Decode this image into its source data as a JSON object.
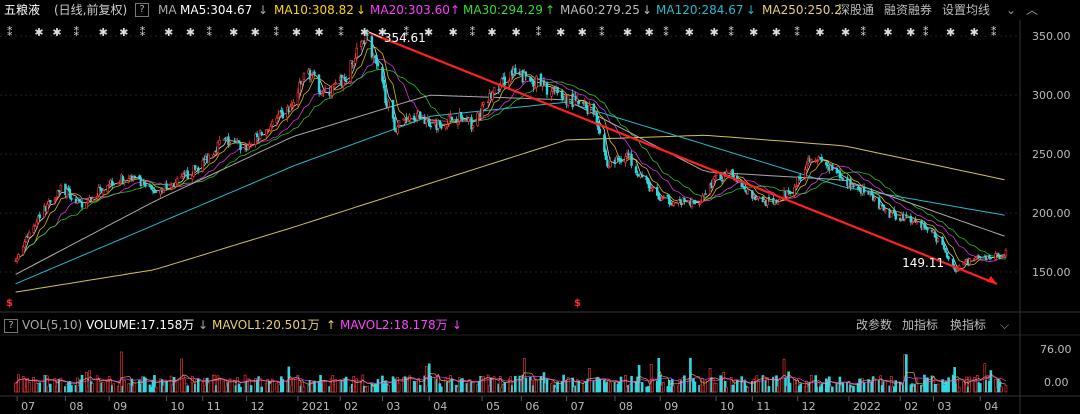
{
  "header": {
    "stock_name": "五粮液",
    "adjust_mode": "(日线,前复权)",
    "help": "?",
    "ma_label": "MA",
    "ma5": "MA5:304.67",
    "ma10": "MA10:308.82",
    "ma10_arrow": "↓",
    "ma20": "MA20:303.60",
    "ma20_arrow": "↑",
    "ma30": "MA30:294.29",
    "ma30_arrow": "↑",
    "ma60": "MA60:279.25",
    "ma60_arrow": "↓",
    "ma120": "MA120:284.67",
    "ma120_arrow": "↓",
    "ma250": "MA250:250.2",
    "sz_connect": "深股通",
    "margin": "融资融券",
    "set_ma": "设置均线",
    "collapse": "︿"
  },
  "volume_header": {
    "help": "?",
    "vol_label": "VOL(5,10)",
    "volume": "VOLUME:17.158万",
    "volume_arrow": "↓",
    "mavol1": "MAVOL1:20.501万",
    "mavol1_arrow": "↑",
    "mavol2": "MAVOL2:18.178万",
    "mavol2_arrow": "↓",
    "change_params": "改参数",
    "add_indicator": "加指标",
    "switch_indicator": "换指标"
  },
  "colors": {
    "up": "#ff3b3b",
    "down": "#2fd8e0",
    "ma5": "#ffffff",
    "ma10": "#ffd700",
    "ma20": "#ff3cff",
    "ma30": "#33dd33",
    "ma60": "#aaaaaa",
    "ma120": "#22bbcc",
    "ma250": "#d0c060",
    "trend": "#ff2020",
    "mavol1": "#e0c060",
    "mavol2": "#ff44ff"
  },
  "chart_data": {
    "type": "candlestick",
    "price_axis": {
      "ticks": [
        "350.00",
        "300.00",
        "250.00",
        "200.00",
        "150.00"
      ],
      "ylim": [
        128,
        362
      ]
    },
    "volume_axis": {
      "ticks": [
        "76.00",
        "0.00"
      ]
    },
    "months": [
      "07",
      "08",
      "09",
      "10",
      "11",
      "12",
      "2021",
      "02",
      "03",
      "04",
      "05",
      "06",
      "07",
      "08",
      "09",
      "10",
      "11",
      "12",
      "2022",
      "02",
      "03",
      "04"
    ],
    "annotations": {
      "high": "354.61",
      "low": "149.11"
    },
    "close_path": [
      [
        "2020-07-01",
        160
      ],
      [
        "2020-07-15",
        195
      ],
      [
        "2020-07-31",
        222
      ],
      [
        "2020-08-14",
        205
      ],
      [
        "2020-08-31",
        226
      ],
      [
        "2020-09-15",
        230
      ],
      [
        "2020-09-30",
        218
      ],
      [
        "2020-10-15",
        225
      ],
      [
        "2020-10-31",
        240
      ],
      [
        "2020-11-15",
        262
      ],
      [
        "2020-11-30",
        255
      ],
      [
        "2020-12-15",
        272
      ],
      [
        "2020-12-31",
        290
      ],
      [
        "2021-01-10",
        322
      ],
      [
        "2021-01-22",
        300
      ],
      [
        "2021-02-05",
        315
      ],
      [
        "2021-02-18",
        352
      ],
      [
        "2021-02-28",
        312
      ],
      [
        "2021-03-09",
        272
      ],
      [
        "2021-03-20",
        285
      ],
      [
        "2021-04-05",
        275
      ],
      [
        "2021-04-20",
        282
      ],
      [
        "2021-04-30",
        275
      ],
      [
        "2021-05-12",
        300
      ],
      [
        "2021-05-25",
        318
      ],
      [
        "2021-06-10",
        312
      ],
      [
        "2021-06-25",
        300
      ],
      [
        "2021-07-10",
        292
      ],
      [
        "2021-07-20",
        286
      ],
      [
        "2021-07-28",
        240
      ],
      [
        "2021-08-10",
        250
      ],
      [
        "2021-08-20",
        230
      ],
      [
        "2021-08-31",
        212
      ],
      [
        "2021-09-10",
        210
      ],
      [
        "2021-09-25",
        208
      ],
      [
        "2021-10-08",
        230
      ],
      [
        "2021-10-20",
        232
      ],
      [
        "2021-11-01",
        215
      ],
      [
        "2021-11-15",
        207
      ],
      [
        "2021-11-30",
        225
      ],
      [
        "2021-12-10",
        250
      ],
      [
        "2021-12-20",
        240
      ],
      [
        "2021-12-31",
        228
      ],
      [
        "2022-01-15",
        218
      ],
      [
        "2022-01-28",
        200
      ],
      [
        "2022-02-15",
        195
      ],
      [
        "2022-03-01",
        183
      ],
      [
        "2022-03-10",
        165
      ],
      [
        "2022-03-16",
        151
      ],
      [
        "2022-03-25",
        160
      ],
      [
        "2022-04-05",
        162
      ],
      [
        "2022-04-18",
        166
      ]
    ],
    "moving_averages": {
      "MA250": [
        [
          "2020-07-01",
          133
        ],
        [
          "2020-10-01",
          152
        ],
        [
          "2021-01-01",
          188
        ],
        [
          "2021-04-01",
          225
        ],
        [
          "2021-07-01",
          262
        ],
        [
          "2021-10-01",
          266
        ],
        [
          "2022-01-01",
          257
        ],
        [
          "2022-04-18",
          228
        ]
      ],
      "MA120": [
        [
          "2020-07-01",
          140
        ],
        [
          "2020-10-01",
          190
        ],
        [
          "2021-01-01",
          240
        ],
        [
          "2021-04-01",
          282
        ],
        [
          "2021-07-01",
          294
        ],
        [
          "2021-10-01",
          258
        ],
        [
          "2022-01-01",
          222
        ],
        [
          "2022-04-18",
          198
        ]
      ],
      "MA60": [
        [
          "2020-07-01",
          148
        ],
        [
          "2020-10-01",
          210
        ],
        [
          "2021-01-01",
          265
        ],
        [
          "2021-04-01",
          300
        ],
        [
          "2021-07-01",
          296
        ],
        [
          "2021-10-01",
          235
        ],
        [
          "2022-01-01",
          228
        ],
        [
          "2022-04-18",
          180
        ]
      ]
    },
    "trendline": [
      [
        "2021-02-20",
        353
      ],
      [
        "2022-04-12",
        140
      ]
    ],
    "volume": {
      "ylim": [
        0,
        95
      ],
      "last": 17.158,
      "mavol1": 20.501,
      "mavol2": 18.178
    }
  }
}
